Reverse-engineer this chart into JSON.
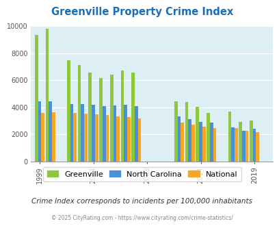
{
  "title": "Greenville Property Crime Index",
  "title_color": "#1a6fba",
  "background_color": "#ddeef5",
  "outer_bg": "#ffffff",
  "groups": [
    {
      "year": 1999,
      "g": 9350,
      "nc": 4450,
      "nat": 3600
    },
    {
      "year": 2000,
      "g": 9800,
      "nc": 4450,
      "nat": 3650
    },
    {
      "year": 2002,
      "g": 7500,
      "nc": 4250,
      "nat": 3600
    },
    {
      "year": 2003,
      "g": 7100,
      "nc": 4250,
      "nat": 3550
    },
    {
      "year": 2004,
      "g": 6550,
      "nc": 4200,
      "nat": 3500
    },
    {
      "year": 2005,
      "g": 6150,
      "nc": 4100,
      "nat": 3450
    },
    {
      "year": 2006,
      "g": 6400,
      "nc": 4150,
      "nat": 3350
    },
    {
      "year": 2007,
      "g": 6700,
      "nc": 4200,
      "nat": 3300
    },
    {
      "year": 2008,
      "g": 6550,
      "nc": 4100,
      "nat": 3200
    },
    {
      "year": 2012,
      "g": 4450,
      "nc": 3350,
      "nat": 2900
    },
    {
      "year": 2013,
      "g": 4400,
      "nc": 3150,
      "nat": 2750
    },
    {
      "year": 2014,
      "g": 4050,
      "nc": 2950,
      "nat": 2600
    },
    {
      "year": 2015,
      "g": 3600,
      "nc": 2900,
      "nat": 2500
    },
    {
      "year": 2017,
      "g": 3700,
      "nc": 2550,
      "nat": 2450
    },
    {
      "year": 2018,
      "g": 2950,
      "nc": 2250,
      "nat": 2250
    },
    {
      "year": 2019,
      "g": 3050,
      "nc": 2400,
      "nat": 2150
    }
  ],
  "xtick_years": [
    1999,
    2004,
    2009,
    2014,
    2019
  ],
  "greenville_color": "#8dc63f",
  "nc_color": "#4a90d9",
  "national_color": "#f5a623",
  "ylim": [
    0,
    10000
  ],
  "yticks": [
    0,
    2000,
    4000,
    6000,
    8000,
    10000
  ],
  "subtitle": "Crime Index corresponds to incidents per 100,000 inhabitants",
  "footer": "© 2025 CityRating.com - https://www.cityrating.com/crime-statistics/",
  "legend_labels": [
    "Greenville",
    "North Carolina",
    "National"
  ]
}
